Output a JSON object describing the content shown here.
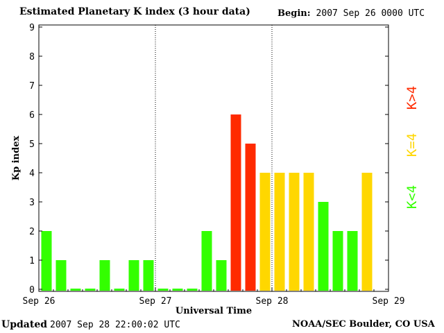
{
  "header": {
    "title": "Estimated Planetary K index (3 hour data)",
    "begin_label": "Begin:",
    "begin_value": "2007 Sep 26 0000 UTC"
  },
  "footer": {
    "updated_label": "Updated",
    "updated_value": "2007 Sep 28 22:00:02 UTC",
    "credit": "NOAA/SEC Boulder, CO USA"
  },
  "colors": {
    "low": "#33ff00",
    "storm_threshold": "#ffd700",
    "storm": "#ff2a00"
  },
  "chart_data": {
    "type": "bar",
    "title": "Estimated Planetary K index (3 hour data)",
    "xlabel": "Universal Time",
    "ylabel": "Kp index",
    "ylim": [
      0,
      9
    ],
    "yticks": [
      0,
      1,
      2,
      3,
      4,
      5,
      6,
      7,
      8,
      9
    ],
    "x_tick_labels": [
      "Sep 26",
      "Sep 27",
      "Sep 28",
      "Sep 29"
    ],
    "day_divider_lines": "dotted",
    "grid": false,
    "values": [
      2,
      1,
      0,
      0,
      1,
      0,
      1,
      1,
      0,
      0,
      0,
      2,
      1,
      6,
      5,
      4,
      4,
      4,
      4,
      3,
      2,
      2,
      4
    ],
    "legend": [
      {
        "label": "K>4",
        "color": "#ff2a00"
      },
      {
        "label": "K=4",
        "color": "#ffd700"
      },
      {
        "label": "K<4",
        "color": "#33ff00"
      }
    ],
    "legend_placement": "right"
  }
}
